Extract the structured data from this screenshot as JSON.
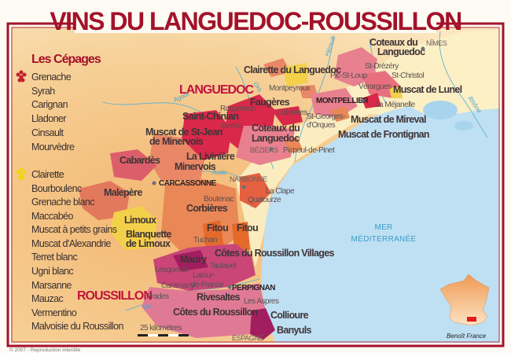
{
  "title": "VINS DU LANGUEDOC-ROUSSILLON",
  "legend": {
    "heading": "Les Cépages",
    "red_icon": "red-grape-icon",
    "white_icon": "white-grape-icon",
    "red_grapes": [
      "Grenache",
      "Syrah",
      "Carignan",
      "Lladoner",
      "Cinsault",
      "Mourvèdre"
    ],
    "white_grapes": [
      "Clairette",
      "Bourboulenc",
      "Grenache blanc",
      "Maccabéo",
      "Muscat à petits grains",
      "Muscat d'Alexandrie",
      "Terret blanc",
      "Ugni blanc",
      "Marsanne",
      "Mauzac",
      "Vermentino",
      "Malvoisie du Roussillon"
    ]
  },
  "regions": {
    "languedoc": "LANGUEDOC",
    "roussillon": "ROUSSILLON"
  },
  "appellations": {
    "coteaux_nord_1": "Coteaux du",
    "coteaux_nord_2": "Languedoc",
    "clairette": "Clairette du Languedoc",
    "faugeres": "Faugères",
    "saint_chinian": "Saint-Chinian",
    "st_jean_1": "Muscat de St-Jean",
    "st_jean_2": "de Minervois",
    "coteaux_1": "Coteaux du",
    "coteaux_2": "Languedoc",
    "muscat_lunel": "Muscat de Lunel",
    "muscat_mireval": "Muscat de Mireval",
    "muscat_frontignan": "Muscat de Frontignan",
    "cabardes": "Cabardès",
    "liviniere_1": "La Livinière",
    "liviniere_2": "Minervois",
    "malepere": "Malepère",
    "corbieres": "Corbières",
    "limoux": "Limoux",
    "blanquette_1": "Blanquette",
    "blanquette_2": "de Limoux",
    "fitou_1": "Fitou",
    "fitou_2": "Fitou",
    "crv": "Côtes du Roussillon Villages",
    "maury": "Maury",
    "rivesaltes": "Rivesaltes",
    "cdr": "Côtes du Roussillon",
    "collioure": "Collioure",
    "banyuls": "Banyuls"
  },
  "terroirs": {
    "st_drezery": "St-Drézéry",
    "pic_st_loup": "Pic-St-Loup",
    "st_christol": "St-Christol",
    "verargues": "Vérargues",
    "montpeyroux": "Montpeyroux",
    "roquebrun": "Roquebrun",
    "berlou": "Berlou",
    "cabrieres": "Cabrières",
    "st_georges_1": "St-Georges-",
    "st_georges_2": "d'Orques",
    "la_mejanelle": "La Méjanelle",
    "picpoul": "Picpoul-de-Pinet",
    "la_clape": "La Clape",
    "quatourze": "Quatourze",
    "boutenac": "Boutenac",
    "tuchan": "Tuchan",
    "tautavel": "Tautavel",
    "lesquerde": "Lesquerde",
    "latour_1": "Latour-",
    "latour_2": "de-France",
    "caramany": "Caramany",
    "prades": "Prades",
    "les_aspres": "Les Aspres"
  },
  "cities": {
    "nimes": "NÎMES",
    "montpellier": "MONTPELLIER",
    "beziers": "BÉZIERS",
    "narbonne": "NARBONNE",
    "carcassonne": "CARCASSONNE",
    "perpignan": "PERPIGNAN",
    "espagne": "ESPAGNE"
  },
  "rivers": {
    "herault": "Hérault",
    "orb": "Orb",
    "agout": "Agout",
    "aude": "Aude",
    "tet": "Têt",
    "rhone": "Rhône"
  },
  "sea": {
    "line1": "MER",
    "line2": "MÉDITERRANÉE"
  },
  "scale": {
    "label": "25 kilomètres"
  },
  "signature": "Benoît France",
  "copyright": "© 2007 - Reproduction interdite",
  "colors": {
    "title": "#a3122a",
    "region_label": "#c0123e",
    "sea": "#bfe0f3",
    "land": "#f5c88a",
    "coastal_plain": "#fcf1c6",
    "red_appellation": "#d9284a",
    "pink_appellation": "#e8808f",
    "orange_appellation": "#e98756",
    "yellow_appellation": "#f3d04a",
    "purple_appellation": "#a31e60"
  }
}
